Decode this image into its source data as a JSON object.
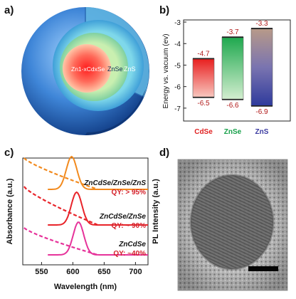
{
  "panels": {
    "a": "a)",
    "b": "b)",
    "c": "c)",
    "d": "d)"
  },
  "panel_a": {
    "core_label": "Zn1-xCdxSe",
    "shell1_label": "ZnSe",
    "shell2_label": "ZnS"
  },
  "chart_data": [
    {
      "type": "bar",
      "panel": "b",
      "ylabel": "Energy vs. vacuum (ev)",
      "categories": [
        "CdSe",
        "ZnSe",
        "ZnS"
      ],
      "colors": [
        "#e02020",
        "#17a04a",
        "#3a3aa0"
      ],
      "top_values": [
        -4.7,
        -3.7,
        -3.3
      ],
      "bottom_values": [
        -6.5,
        -6.6,
        -6.9
      ],
      "top_labels": [
        "-4.7",
        "-3.7",
        "-3.3"
      ],
      "bottom_labels": [
        "-6.5",
        "-6.6",
        "-6.9"
      ],
      "yticks": [
        "-3",
        "-4",
        "-5",
        "-6",
        "-7"
      ],
      "ytick_values": [
        -3,
        -4,
        -5,
        -6,
        -7
      ],
      "ylim": [
        -7.6,
        -2.9
      ]
    },
    {
      "type": "line",
      "panel": "c",
      "xlabel": "Wavelength (nm)",
      "ylabel_left": "Absorbance (a.u.)",
      "ylabel_right": "PL Intensity (a.u.)",
      "xlim": [
        520,
        720
      ],
      "xticks": [
        "550",
        "600",
        "650",
        "700"
      ],
      "xtick_values": [
        550,
        600,
        650,
        700
      ],
      "series": [
        {
          "name": "ZnCdSe/ZnSe/ZnS",
          "qy": "QY: > 95%",
          "color": "#f28a1e",
          "pl_peak": 598
        },
        {
          "name": "ZnCdSe/ZnSe",
          "qy": "QY: ~ 90%",
          "color": "#e8242a",
          "pl_peak": 606
        },
        {
          "name": "ZnCdSe",
          "qy": "QY: ~40%",
          "color": "#e6339a",
          "pl_peak": 609
        }
      ]
    }
  ]
}
